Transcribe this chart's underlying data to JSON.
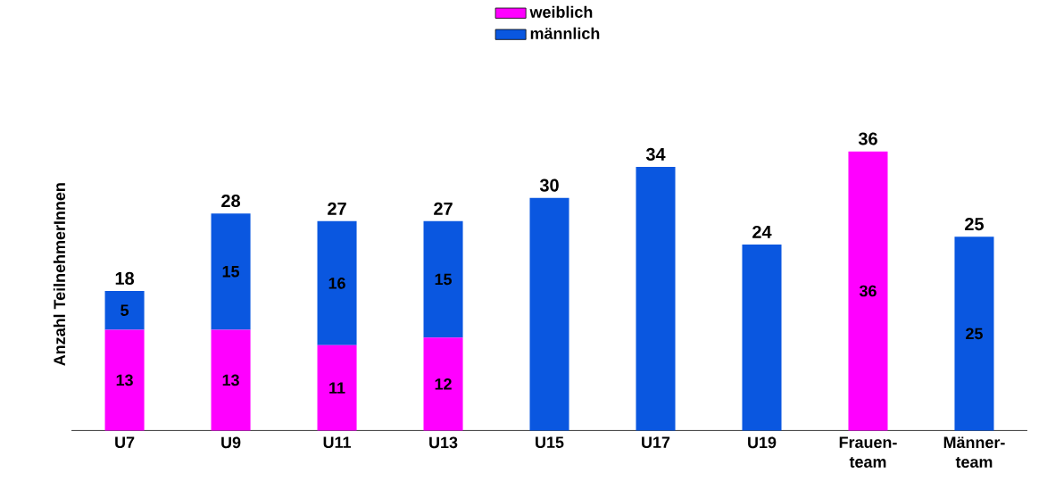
{
  "chart_data": {
    "type": "bar",
    "stacked": true,
    "ylabel": "Anzahl TeilnehmerInnen",
    "legend": "top",
    "categories": [
      "U7",
      "U9",
      "U11",
      "U13",
      "U15",
      "U17",
      "U19",
      "Frauen-team",
      "Männer-team"
    ],
    "series": [
      {
        "name": "weiblich",
        "color": "#ff00ff",
        "values": [
          13,
          13,
          11,
          12,
          null,
          null,
          null,
          36,
          null
        ],
        "value_labels": [
          "13",
          "13",
          "11",
          "12",
          null,
          null,
          null,
          "36",
          null
        ]
      },
      {
        "name": "männlich",
        "color": "#0a57e0",
        "values": [
          5,
          15,
          16,
          15,
          30,
          34,
          24,
          null,
          25
        ],
        "value_labels": [
          "5",
          "15",
          "16",
          "15",
          null,
          null,
          null,
          null,
          "25"
        ]
      }
    ],
    "totals": [
      "18",
      "28",
      "27",
      "27",
      "30",
      "34",
      "24",
      "36",
      "25"
    ]
  }
}
